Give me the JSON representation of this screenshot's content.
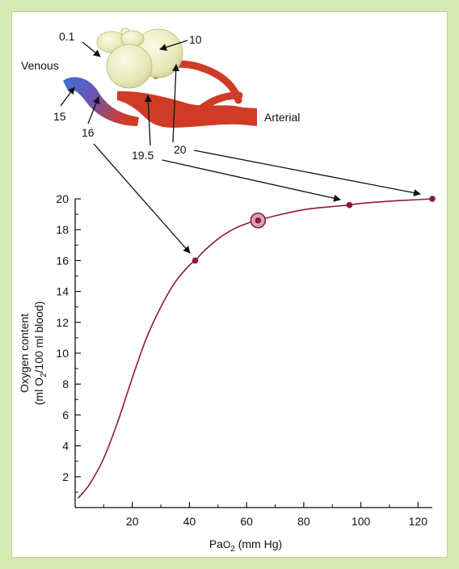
{
  "colors": {
    "frame": "#d6e9b4",
    "curve": "#8b1a3d",
    "venous": "#3d6fd1",
    "arterial": "#cf3b26",
    "lung": "#eeeec4",
    "arrow": "#111111"
  },
  "diagram": {
    "label_venous": "Venous",
    "label_arterial": "Arterial",
    "label_lung_upper": "0.1",
    "label_lung_right": "10",
    "label_venous_value": "15",
    "label_mixed_value": "16",
    "label_capillary_value": "19.5",
    "label_arterial_value": "20"
  },
  "chart_data": {
    "type": "line",
    "title": "",
    "xlabel_main": "Pa",
    "xlabel_sub": "O",
    "xlabel_sub2": "2",
    "xlabel_unit": "(mm Hg)",
    "ylabel_line1": "Oxygen content",
    "ylabel_line2_a": "(ml O",
    "ylabel_line2_sub": "2",
    "ylabel_line2_b": "/100 ml blood)",
    "xlim": [
      0,
      125
    ],
    "ylim": [
      0,
      20
    ],
    "x_ticks": [
      "20",
      "40",
      "60",
      "80",
      "100",
      "120"
    ],
    "y_ticks": [
      "2",
      "4",
      "6",
      "8",
      "10",
      "12",
      "14",
      "16",
      "18",
      "20"
    ],
    "series": [
      {
        "x": [
          1,
          5,
          10,
          15,
          20,
          25,
          30,
          35,
          40,
          42,
          45,
          50,
          55,
          60,
          64,
          70,
          80,
          90,
          96,
          100,
          110,
          120,
          125
        ],
        "y": [
          0.6,
          1.5,
          3.2,
          5.6,
          8.4,
          11.0,
          13.0,
          14.6,
          15.7,
          16.0,
          16.6,
          17.4,
          18.0,
          18.4,
          18.6,
          18.9,
          19.3,
          19.5,
          19.6,
          19.7,
          19.85,
          19.95,
          20.0
        ]
      }
    ],
    "points": [
      {
        "x": 42,
        "y": 16.0,
        "circled": false
      },
      {
        "x": 64,
        "y": 18.6,
        "circled": true
      },
      {
        "x": 96,
        "y": 19.6,
        "circled": false
      },
      {
        "x": 125,
        "y": 20.0,
        "circled": false
      }
    ],
    "grid": false
  }
}
